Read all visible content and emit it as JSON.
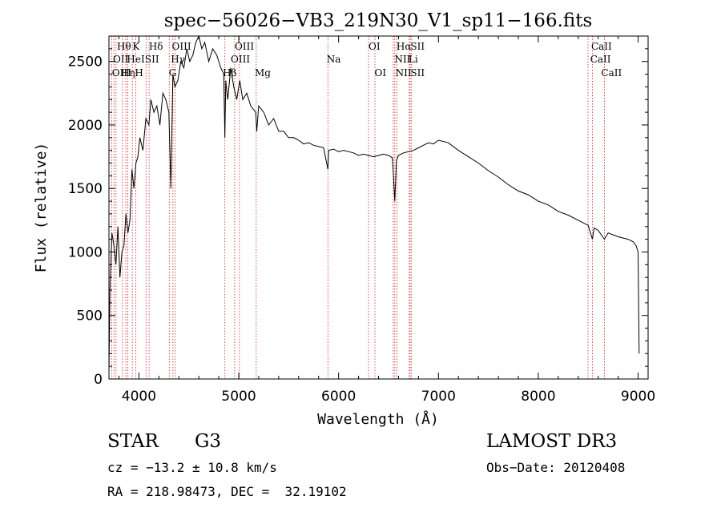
{
  "chart_data": {
    "type": "line",
    "title": "spec−56026−VB3_219N30_V1_sp11−166.fits",
    "xlabel": "Wavelength (Å)",
    "ylabel": "Flux (relative)",
    "xlim": [
      3700,
      9100
    ],
    "ylim": [
      0,
      2700
    ],
    "x_ticks": [
      4000,
      5000,
      6000,
      7000,
      8000,
      9000
    ],
    "x_tick_labels": [
      "4000",
      "5000",
      "6000",
      "7000",
      "8000",
      "9000"
    ],
    "y_ticks": [
      0,
      500,
      1000,
      1500,
      2000,
      2500
    ],
    "y_tick_labels": [
      "0",
      "500",
      "1000",
      "1500",
      "2000",
      "2500"
    ],
    "series": [
      {
        "name": "flux",
        "x": [
          3700,
          3710,
          3730,
          3750,
          3770,
          3790,
          3810,
          3830,
          3850,
          3870,
          3890,
          3910,
          3930,
          3950,
          3970,
          3990,
          4010,
          4040,
          4070,
          4100,
          4120,
          4150,
          4180,
          4210,
          4240,
          4270,
          4300,
          4320,
          4340,
          4360,
          4390,
          4420,
          4450,
          4480,
          4510,
          4540,
          4570,
          4600,
          4630,
          4660,
          4700,
          4740,
          4780,
          4820,
          4850,
          4861,
          4870,
          4890,
          4920,
          4950,
          4980,
          5010,
          5040,
          5080,
          5120,
          5170,
          5180,
          5200,
          5250,
          5300,
          5350,
          5400,
          5450,
          5500,
          5550,
          5600,
          5650,
          5700,
          5750,
          5800,
          5850,
          5893,
          5900,
          5950,
          6000,
          6050,
          6100,
          6150,
          6200,
          6250,
          6300,
          6350,
          6400,
          6450,
          6500,
          6540,
          6563,
          6580,
          6600,
          6650,
          6700,
          6750,
          6800,
          6850,
          6900,
          6950,
          7000,
          7100,
          7200,
          7300,
          7400,
          7500,
          7600,
          7700,
          7800,
          7900,
          8000,
          8100,
          8200,
          8300,
          8400,
          8500,
          8542,
          8560,
          8600,
          8662,
          8700,
          8800,
          8900,
          8950,
          8980,
          9000,
          9010
        ],
        "values": [
          50,
          700,
          1150,
          1050,
          900,
          1200,
          800,
          1000,
          1050,
          1300,
          1150,
          1250,
          1650,
          1500,
          1700,
          1750,
          1900,
          1800,
          2050,
          2000,
          2200,
          2100,
          2150,
          2000,
          2250,
          2200,
          2100,
          1500,
          2400,
          2300,
          2350,
          2500,
          2450,
          2600,
          2500,
          2550,
          2650,
          2700,
          2600,
          2650,
          2500,
          2600,
          2550,
          2450,
          2400,
          1900,
          2350,
          2200,
          2450,
          2300,
          2200,
          2350,
          2200,
          2250,
          2150,
          2100,
          1950,
          2150,
          2100,
          2000,
          2050,
          1950,
          1950,
          1900,
          1900,
          1880,
          1850,
          1860,
          1840,
          1830,
          1820,
          1650,
          1800,
          1810,
          1790,
          1800,
          1790,
          1780,
          1760,
          1770,
          1760,
          1750,
          1760,
          1770,
          1760,
          1740,
          1400,
          1720,
          1760,
          1780,
          1790,
          1800,
          1820,
          1840,
          1860,
          1850,
          1880,
          1860,
          1800,
          1750,
          1700,
          1640,
          1590,
          1530,
          1480,
          1450,
          1400,
          1370,
          1320,
          1290,
          1250,
          1210,
          1100,
          1190,
          1170,
          1100,
          1150,
          1120,
          1100,
          1080,
          1050,
          1000,
          200
        ]
      }
    ],
    "lines": [
      {
        "x": 3727,
        "labels": [
          "OII"
        ]
      },
      {
        "x": 3750,
        "labels": [
          "OIII"
        ]
      },
      {
        "x": 3771,
        "labels": [
          "Hθ"
        ]
      },
      {
        "x": 3835,
        "labels": [
          "Hη"
        ]
      },
      {
        "x": 3869,
        "labels": [
          "HeI"
        ]
      },
      {
        "x": 3889,
        "labels": [
          "H"
        ]
      },
      {
        "x": 3934,
        "labels": [
          "K"
        ]
      },
      {
        "x": 3968,
        "labels": [
          "H"
        ]
      },
      {
        "x": 4072,
        "labels": [
          "SII"
        ]
      },
      {
        "x": 4102,
        "labels": [
          "Hδ"
        ]
      },
      {
        "x": 4304,
        "labels": [
          "G"
        ]
      },
      {
        "x": 4341,
        "labels": [
          "Hγ"
        ]
      },
      {
        "x": 4363,
        "labels": [
          "OIII"
        ]
      },
      {
        "x": 4861,
        "labels": [
          "Hβ"
        ]
      },
      {
        "x": 4959,
        "labels": [
          "OIII"
        ]
      },
      {
        "x": 5007,
        "labels": [
          "OIII"
        ]
      },
      {
        "x": 5175,
        "labels": [
          "Mg"
        ]
      },
      {
        "x": 5893,
        "labels": [
          "Na"
        ]
      },
      {
        "x": 6300,
        "labels": [
          "OI"
        ]
      },
      {
        "x": 6364,
        "labels": [
          "OI"
        ]
      },
      {
        "x": 6548,
        "labels": [
          "NII"
        ]
      },
      {
        "x": 6563,
        "labels": [
          "Hα"
        ]
      },
      {
        "x": 6583,
        "labels": [
          "NII"
        ]
      },
      {
        "x": 6708,
        "labels": [
          "Li"
        ]
      },
      {
        "x": 6717,
        "labels": [
          "SII"
        ]
      },
      {
        "x": 6731,
        "labels": [
          "SII"
        ]
      },
      {
        "x": 8498,
        "labels": [
          "CaII"
        ]
      },
      {
        "x": 8542,
        "labels": [
          "CaII"
        ]
      },
      {
        "x": 8662,
        "labels": [
          "CaII"
        ]
      }
    ],
    "line_label_rows": [
      [
        "Hθ",
        "K",
        "Hδ",
        "OIII",
        "OIII",
        "OI",
        "Hα",
        "SII",
        "CaII"
      ],
      [
        "OII",
        "HeI",
        "SII",
        "Hγ",
        "OIII",
        "Na",
        "NII",
        "Li",
        "CaII"
      ],
      [
        "OIII",
        "Hη",
        "H",
        "G",
        "Hβ",
        "Mg",
        "OI",
        "NII",
        "SII",
        "CaII"
      ]
    ]
  },
  "info": {
    "class_label": "STAR",
    "subclass": "G3",
    "survey": "LAMOST DR3",
    "redshift_text": "cz = −13.2 ± 10.8 km/s",
    "obs_date": "Obs−Date: 20120408",
    "coords": "RA = 218.98473, DEC =  32.19102"
  },
  "colors": {
    "line_marker": "#cc2222",
    "ink": "#000000",
    "background": "#ffffff"
  }
}
